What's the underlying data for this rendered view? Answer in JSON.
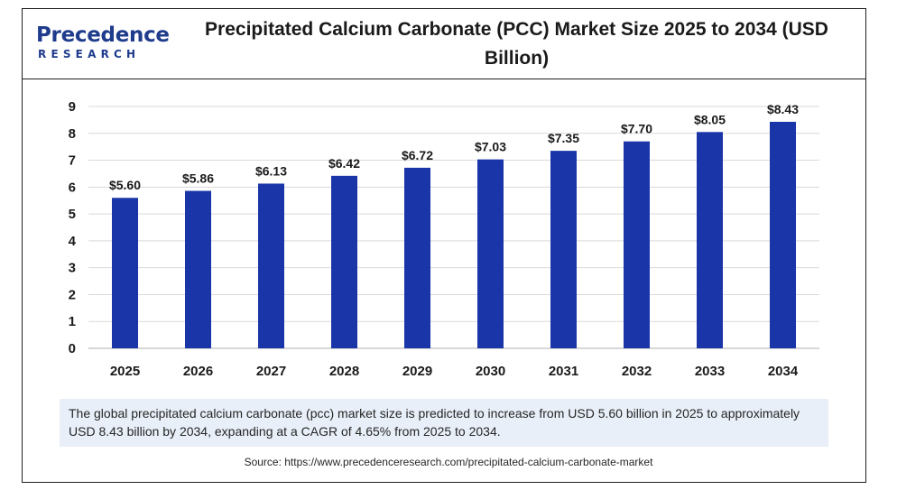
{
  "header": {
    "logo_main": "Precedence",
    "logo_sub": "RESEARCH",
    "title": "Precipitated Calcium Carbonate (PCC) Market  Size 2025 to 2034 (USD Billion)"
  },
  "chart_data": {
    "type": "bar",
    "title": "Precipitated Calcium Carbonate (PCC) Market  Size 2025 to 2034 (USD Billion)",
    "xlabel": "",
    "ylabel": "",
    "categories": [
      "2025",
      "2026",
      "2027",
      "2028",
      "2029",
      "2030",
      "2031",
      "2032",
      "2033",
      "2034"
    ],
    "values": [
      5.6,
      5.86,
      6.13,
      6.42,
      6.72,
      7.03,
      7.35,
      7.7,
      8.05,
      8.43
    ],
    "value_labels": [
      "$5.60",
      "$5.86",
      "$6.13",
      "$6.42",
      "$6.72",
      "$7.03",
      "$7.35",
      "$7.70",
      "$8.05",
      "$8.43"
    ],
    "yticks": [
      "0",
      "1",
      "2",
      "3",
      "4",
      "5",
      "6",
      "7",
      "8",
      "9"
    ],
    "ylim": [
      0,
      9
    ],
    "grid": true,
    "legend": "none",
    "bar_color": "#1a35a8"
  },
  "caption": "The global precipitated calcium carbonate (pcc) market size is predicted to increase from USD 5.60 billion in 2025 to approximately USD 8.43 billion by 2034, expanding at a CAGR of 4.65% from 2025 to 2034.",
  "source": "Source: https://www.precedenceresearch.com/precipitated-calcium-carbonate-market"
}
